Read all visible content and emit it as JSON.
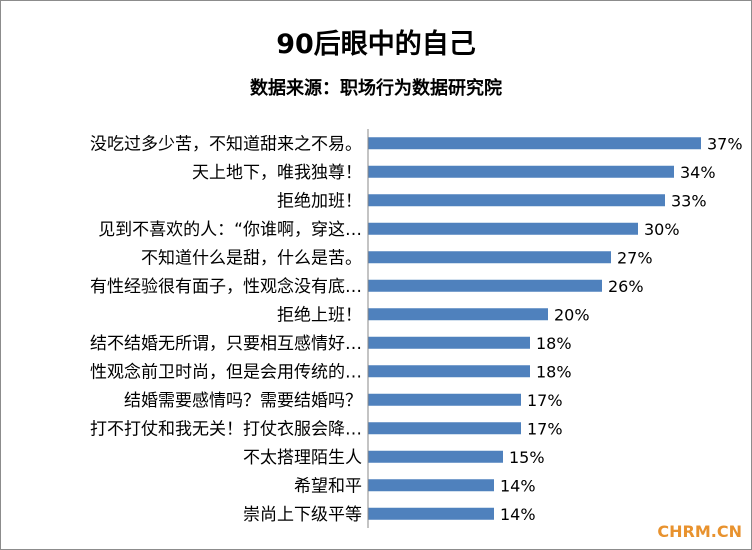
{
  "chart_data": {
    "type": "bar",
    "orientation": "horizontal",
    "title": "90后眼中的自己",
    "subtitle": "数据来源：职场行为数据研究院",
    "categories": [
      "没吃过多少苦，不知道甜来之不易。",
      "天上地下，唯我独尊！",
      "拒绝加班！",
      "见到不喜欢的人：“你谁啊，穿这…",
      "不知道什么是甜，什么是苦。",
      "有性经验很有面子，性观念没有底…",
      "拒绝上班！",
      "结不结婚无所谓，只要相互感情好…",
      "性观念前卫时尚，但是会用传统的…",
      "结婚需要感情吗？需要结婚吗？",
      "打不打仗和我无关！打仗衣服会降…",
      "不太搭理陌生人",
      "希望和平",
      "崇尚上下级平等"
    ],
    "values": [
      37,
      34,
      33,
      30,
      27,
      26,
      20,
      18,
      18,
      17,
      17,
      15,
      14,
      14
    ],
    "value_labels": [
      "37%",
      "34%",
      "33%",
      "30%",
      "27%",
      "26%",
      "20%",
      "18%",
      "18%",
      "17%",
      "17%",
      "15%",
      "14%",
      "14%"
    ],
    "xlim": [
      0,
      40
    ],
    "grid": false,
    "legend": "none",
    "bar_color": "#4f81bd"
  },
  "watermark": "CHRM.CN"
}
